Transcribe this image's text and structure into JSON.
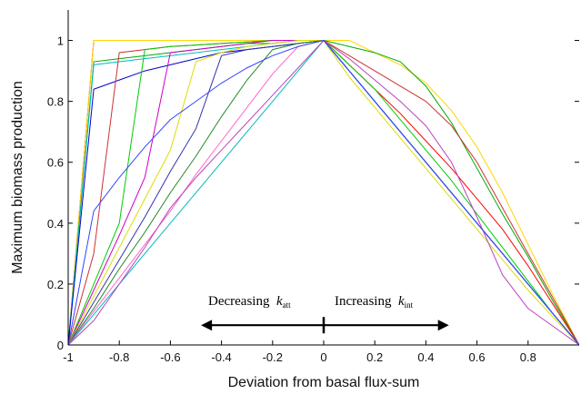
{
  "chart_data": {
    "type": "line",
    "title": "",
    "xlabel": "Deviation from basal flux-sum",
    "ylabel": "Maximum biomass production",
    "xlim": [
      -1,
      1
    ],
    "ylim": [
      0,
      1.1
    ],
    "grid": false,
    "legend": "none",
    "x_ticks": [
      "-1",
      "-0.8",
      "-0.6",
      "-0.4",
      "-0.2",
      "0",
      "0.2",
      "0.4",
      "0.6",
      "0.8"
    ],
    "y_ticks": [
      "0",
      "0.2",
      "0.4",
      "0.6",
      "0.8",
      "1"
    ],
    "x_tick_values": [
      -1,
      -0.8,
      -0.6,
      -0.4,
      -0.2,
      0,
      0.2,
      0.4,
      0.6,
      0.8
    ],
    "y_tick_values": [
      0,
      0.2,
      0.4,
      0.6,
      0.8,
      1
    ],
    "x": [
      -1,
      -0.9,
      -0.8,
      -0.7,
      -0.6,
      -0.5,
      -0.4,
      -0.3,
      -0.2,
      -0.1,
      0,
      0.1,
      0.2,
      0.3,
      0.4,
      0.5,
      0.6,
      0.7,
      0.8,
      0.9,
      1
    ],
    "series": [
      {
        "color": "#ff0000",
        "values": [
          0,
          1,
          1,
          1,
          1,
          1,
          1,
          1,
          1,
          1,
          1,
          0.92,
          0.84,
          0.76,
          0.67,
          0.58,
          0.48,
          0.38,
          0.26,
          0.13,
          0
        ]
      },
      {
        "color": "#ffd700",
        "values": [
          0,
          1,
          1,
          1,
          1,
          1,
          1,
          1,
          1,
          1,
          1,
          1,
          0.96,
          0.92,
          0.86,
          0.77,
          0.65,
          0.5,
          0.33,
          0.16,
          0
        ]
      },
      {
        "color": "#00aa00",
        "values": [
          0,
          0.93,
          0.94,
          0.95,
          0.96,
          0.97,
          0.98,
          0.99,
          0.99,
          1,
          1,
          0.98,
          0.96,
          0.93,
          0.85,
          0.73,
          0.58,
          0.43,
          0.29,
          0.14,
          0
        ]
      },
      {
        "color": "#00bcbc",
        "values": [
          0,
          0.92,
          0.93,
          0.94,
          0.95,
          0.96,
          0.97,
          0.98,
          0.99,
          1,
          1,
          0.9,
          0.8,
          0.7,
          0.6,
          0.5,
          0.4,
          0.3,
          0.2,
          0.1,
          0
        ]
      },
      {
        "color": "#0000cc",
        "values": [
          0,
          0.84,
          0.87,
          0.9,
          0.92,
          0.94,
          0.96,
          0.97,
          0.98,
          0.99,
          1,
          0.9,
          0.8,
          0.7,
          0.6,
          0.5,
          0.4,
          0.3,
          0.2,
          0.1,
          0
        ]
      },
      {
        "color": "#cc3333",
        "values": [
          0,
          0.3,
          0.96,
          0.97,
          0.98,
          0.985,
          0.99,
          0.995,
          1,
          1,
          1,
          0.95,
          0.9,
          0.85,
          0.8,
          0.72,
          0.6,
          0.45,
          0.3,
          0.15,
          0
        ]
      },
      {
        "color": "#00cc00",
        "values": [
          0,
          0.2,
          0.4,
          0.97,
          0.98,
          0.985,
          0.99,
          0.995,
          1,
          1,
          1,
          0.92,
          0.84,
          0.74,
          0.64,
          0.54,
          0.43,
          0.32,
          0.21,
          0.1,
          0
        ]
      },
      {
        "color": "#cc00cc",
        "values": [
          0,
          0.18,
          0.36,
          0.55,
          0.96,
          0.97,
          0.98,
          0.99,
          1,
          1,
          1,
          0.9,
          0.8,
          0.7,
          0.6,
          0.5,
          0.4,
          0.3,
          0.2,
          0.1,
          0
        ]
      },
      {
        "color": "#dddd00",
        "values": [
          0,
          0.16,
          0.32,
          0.48,
          0.64,
          0.93,
          0.96,
          0.98,
          0.99,
          1,
          1,
          0.88,
          0.78,
          0.68,
          0.58,
          0.48,
          0.38,
          0.28,
          0.18,
          0.09,
          0
        ]
      },
      {
        "color": "#3333aa",
        "values": [
          0,
          0.14,
          0.28,
          0.42,
          0.57,
          0.71,
          0.95,
          0.97,
          0.98,
          0.99,
          1,
          0.9,
          0.8,
          0.7,
          0.6,
          0.5,
          0.4,
          0.3,
          0.2,
          0.1,
          0
        ]
      },
      {
        "color": "#228822",
        "values": [
          0,
          0.12,
          0.25,
          0.37,
          0.5,
          0.62,
          0.75,
          0.87,
          0.97,
          0.99,
          1,
          0.9,
          0.8,
          0.7,
          0.6,
          0.5,
          0.4,
          0.3,
          0.2,
          0.1,
          0
        ]
      },
      {
        "color": "#ff66cc",
        "values": [
          0,
          0.11,
          0.22,
          0.33,
          0.44,
          0.56,
          0.67,
          0.78,
          0.89,
          0.98,
          1,
          0.9,
          0.8,
          0.7,
          0.6,
          0.5,
          0.4,
          0.3,
          0.2,
          0.1,
          0
        ]
      },
      {
        "color": "#00bbbb",
        "values": [
          0,
          0.1,
          0.2,
          0.3,
          0.4,
          0.5,
          0.6,
          0.7,
          0.8,
          0.9,
          1,
          0.9,
          0.8,
          0.7,
          0.6,
          0.5,
          0.4,
          0.3,
          0.2,
          0.1,
          0
        ]
      },
      {
        "color": "#bb44bb",
        "values": [
          0,
          0.08,
          0.2,
          0.32,
          0.45,
          0.55,
          0.64,
          0.73,
          0.82,
          0.91,
          1,
          0.94,
          0.87,
          0.8,
          0.72,
          0.6,
          0.42,
          0.23,
          0.12,
          0.06,
          0
        ]
      },
      {
        "color": "#3344ff",
        "values": [
          0,
          0.44,
          0.55,
          0.65,
          0.74,
          0.8,
          0.86,
          0.91,
          0.95,
          0.98,
          1,
          0.9,
          0.8,
          0.7,
          0.6,
          0.5,
          0.4,
          0.3,
          0.2,
          0.1,
          0
        ]
      }
    ],
    "annotations": {
      "left_text": "Decreasing",
      "left_symbol": "k",
      "left_subscript": "att",
      "right_text": "Increasing",
      "right_symbol": "k",
      "right_subscript": "int",
      "arrow_from": -0.48,
      "arrow_to": 0.49,
      "arrow_center": 0,
      "arrow_y": 0.065
    }
  }
}
